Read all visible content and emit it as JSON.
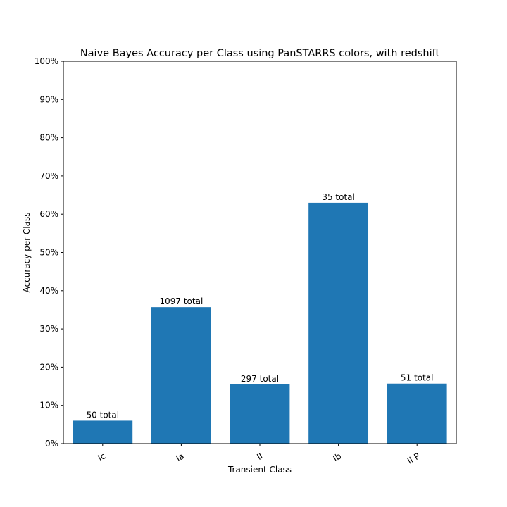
{
  "chart_data": {
    "type": "bar",
    "title": "Naive Bayes Accuracy per Class using PanSTARRS colors, with redshift",
    "xlabel": "Transient Class",
    "ylabel": "Accuracy per Class",
    "categories": [
      "Ic",
      "Ia",
      "II",
      "Ib",
      "II P"
    ],
    "values": [
      0.06,
      0.357,
      0.155,
      0.63,
      0.157
    ],
    "bar_labels": [
      "50 total",
      "1097 total",
      "297 total",
      "35 total",
      "51 total"
    ],
    "ylim": [
      0,
      1
    ],
    "yticks": [
      0,
      0.1,
      0.2,
      0.3,
      0.4,
      0.5,
      0.6,
      0.7,
      0.8,
      0.9,
      1.0
    ],
    "ytick_labels": [
      "0%",
      "10%",
      "20%",
      "30%",
      "40%",
      "50%",
      "60%",
      "70%",
      "80%",
      "90%",
      "100%"
    ],
    "xtick_rotation": "slanted",
    "grid": false,
    "bar_color": "#1f77b4"
  }
}
